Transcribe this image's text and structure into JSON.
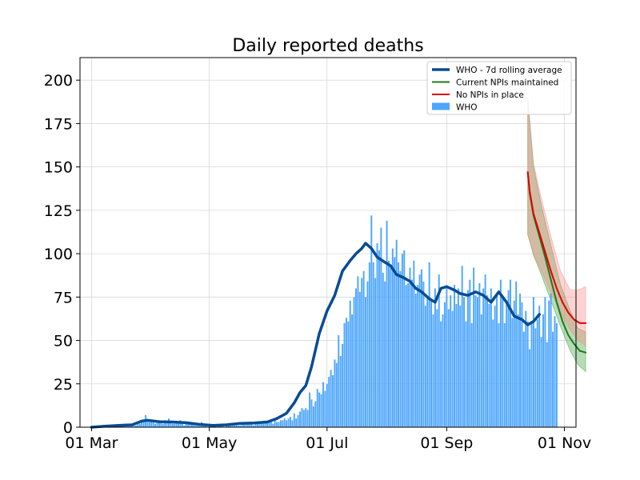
{
  "chart_data": {
    "type": "bar",
    "title": "Daily reported deaths",
    "xlabel": "",
    "ylabel": "",
    "grid": true,
    "legend_position": "top-right",
    "x_range": [
      "2020-02-24",
      "2020-11-07"
    ],
    "ylim": [
      0,
      213
    ],
    "x_ticks": [
      {
        "date": "2020-03-01",
        "label": "01 Mar"
      },
      {
        "date": "2020-05-01",
        "label": "01 May"
      },
      {
        "date": "2020-07-01",
        "label": "01 Jul"
      },
      {
        "date": "2020-09-01",
        "label": "01 Sep"
      },
      {
        "date": "2020-11-01",
        "label": "01 Nov"
      }
    ],
    "y_ticks": [
      0,
      25,
      50,
      75,
      100,
      125,
      150,
      175,
      200
    ],
    "start_date": "2020-03-01",
    "bars": {
      "name": "WHO",
      "color": "#4da6ff",
      "values": [
        0,
        0,
        0,
        1,
        1,
        0,
        1,
        0,
        1,
        1,
        1,
        1,
        0,
        0,
        1,
        1,
        1,
        2,
        1,
        1,
        1,
        1,
        2,
        1,
        2,
        2,
        3,
        4,
        7,
        4,
        3,
        4,
        3,
        2,
        3,
        4,
        3,
        2,
        4,
        3,
        5,
        3,
        2,
        2,
        3,
        2,
        4,
        3,
        1,
        2,
        3,
        2,
        2,
        2,
        1,
        2,
        2,
        3,
        1,
        1,
        0,
        1,
        1,
        0,
        1,
        0,
        1,
        1,
        1,
        0,
        1,
        2,
        1,
        1,
        1,
        2,
        1,
        1,
        2,
        2,
        2,
        2,
        2,
        2,
        1,
        2,
        3,
        2,
        3,
        2,
        3,
        3,
        3,
        3,
        2,
        4,
        3,
        3,
        4,
        4,
        5,
        4,
        5,
        6,
        4,
        8,
        5,
        7,
        9,
        11,
        10,
        11,
        10,
        20,
        16,
        12,
        15,
        22,
        20,
        19,
        26,
        21,
        25,
        29,
        33,
        30,
        39,
        37,
        53,
        41,
        48,
        60,
        63,
        61,
        73,
        65,
        75,
        80,
        87,
        78,
        86,
        90,
        75,
        84,
        95,
        122,
        95,
        86,
        106,
        102,
        115,
        89,
        84,
        119,
        96,
        93,
        103,
        98,
        108,
        95,
        90,
        100,
        102,
        82,
        83,
        92,
        85,
        96,
        77,
        82,
        88,
        91,
        84,
        70,
        75,
        95,
        74,
        65,
        80,
        68,
        88,
        61,
        65,
        72,
        80,
        68,
        76,
        67,
        82,
        71,
        80,
        70,
        93,
        75,
        61,
        79,
        85,
        60,
        92,
        76,
        75,
        83,
        65,
        80,
        88,
        76,
        71,
        80,
        62,
        70,
        77,
        60,
        85,
        75,
        60,
        72,
        79,
        85,
        63,
        73,
        84,
        65,
        77,
        72,
        55,
        67,
        61,
        45,
        60,
        75,
        57,
        62,
        70,
        52,
        65,
        75,
        49,
        73,
        77,
        55,
        64,
        60
      ],
      "note_values": "one bar per day starting at start_date"
    },
    "series": [
      {
        "name": "WHO - 7d rolling average",
        "color": "#084c94",
        "points": [
          [
            "2020-03-01",
            0
          ],
          [
            "2020-03-08",
            0.6
          ],
          [
            "2020-03-15",
            1
          ],
          [
            "2020-03-22",
            1.4
          ],
          [
            "2020-03-27",
            3.5
          ],
          [
            "2020-03-30",
            4
          ],
          [
            "2020-04-05",
            3.2
          ],
          [
            "2020-04-12",
            3
          ],
          [
            "2020-04-19",
            2.6
          ],
          [
            "2020-04-26",
            1.6
          ],
          [
            "2020-05-03",
            1
          ],
          [
            "2020-05-10",
            1.4
          ],
          [
            "2020-05-17",
            2.2
          ],
          [
            "2020-05-24",
            2.4
          ],
          [
            "2020-05-31",
            3
          ],
          [
            "2020-06-05",
            5
          ],
          [
            "2020-06-10",
            8
          ],
          [
            "2020-06-14",
            14
          ],
          [
            "2020-06-17",
            20
          ],
          [
            "2020-06-20",
            24
          ],
          [
            "2020-06-23",
            35
          ],
          [
            "2020-06-27",
            54
          ],
          [
            "2020-07-01",
            67
          ],
          [
            "2020-07-05",
            76
          ],
          [
            "2020-07-09",
            90
          ],
          [
            "2020-07-13",
            96
          ],
          [
            "2020-07-16",
            100
          ],
          [
            "2020-07-19",
            103
          ],
          [
            "2020-07-21",
            106
          ],
          [
            "2020-07-24",
            103
          ],
          [
            "2020-07-27",
            98
          ],
          [
            "2020-07-31",
            95
          ],
          [
            "2020-08-03",
            93
          ],
          [
            "2020-08-06",
            88
          ],
          [
            "2020-08-10",
            86
          ],
          [
            "2020-08-13",
            84
          ],
          [
            "2020-08-16",
            80
          ],
          [
            "2020-08-19",
            78
          ],
          [
            "2020-08-23",
            74
          ],
          [
            "2020-08-26",
            72
          ],
          [
            "2020-08-29",
            80
          ],
          [
            "2020-09-01",
            81
          ],
          [
            "2020-09-05",
            79
          ],
          [
            "2020-09-08",
            77
          ],
          [
            "2020-09-12",
            76
          ],
          [
            "2020-09-16",
            78
          ],
          [
            "2020-09-20",
            76
          ],
          [
            "2020-09-24",
            72
          ],
          [
            "2020-09-28",
            78
          ],
          [
            "2020-10-02",
            72
          ],
          [
            "2020-10-06",
            64
          ],
          [
            "2020-10-10",
            62
          ],
          [
            "2020-10-13",
            59
          ],
          [
            "2020-10-16",
            61
          ],
          [
            "2020-10-19",
            65
          ]
        ]
      },
      {
        "name": "Current NPIs maintained",
        "color": "#1a7a1a",
        "points": [
          [
            "2020-10-13",
            147
          ],
          [
            "2020-10-14",
            135
          ],
          [
            "2020-10-16",
            122
          ],
          [
            "2020-10-19",
            110
          ],
          [
            "2020-10-22",
            98
          ],
          [
            "2020-10-25",
            85
          ],
          [
            "2020-10-28",
            72
          ],
          [
            "2020-10-31",
            61
          ],
          [
            "2020-11-03",
            53
          ],
          [
            "2020-11-06",
            48
          ],
          [
            "2020-11-09",
            44
          ],
          [
            "2020-11-12",
            43
          ]
        ],
        "band": {
          "color": "#2e9a2e",
          "upper": [
            [
              "2020-10-13",
              190
            ],
            [
              "2020-10-16",
              150
            ],
            [
              "2020-10-20",
              128
            ],
            [
              "2020-10-25",
              105
            ],
            [
              "2020-10-30",
              82
            ],
            [
              "2020-11-04",
              67
            ],
            [
              "2020-11-08",
              57
            ],
            [
              "2020-11-12",
              55
            ]
          ],
          "lower": [
            [
              "2020-10-13",
              111
            ],
            [
              "2020-10-16",
              99
            ],
            [
              "2020-10-20",
              88
            ],
            [
              "2020-10-25",
              73
            ],
            [
              "2020-10-30",
              58
            ],
            [
              "2020-11-04",
              44
            ],
            [
              "2020-11-08",
              36
            ],
            [
              "2020-11-12",
              32
            ]
          ]
        }
      },
      {
        "name": "No NPIs in place",
        "color": "#e00000",
        "points": [
          [
            "2020-10-13",
            147
          ],
          [
            "2020-10-14",
            136
          ],
          [
            "2020-10-16",
            123
          ],
          [
            "2020-10-19",
            112
          ],
          [
            "2020-10-22",
            101
          ],
          [
            "2020-10-25",
            90
          ],
          [
            "2020-10-28",
            80
          ],
          [
            "2020-10-31",
            72
          ],
          [
            "2020-11-03",
            66
          ],
          [
            "2020-11-06",
            62
          ],
          [
            "2020-11-09",
            60
          ],
          [
            "2020-11-12",
            60
          ]
        ],
        "band": {
          "color": "#ff8080",
          "upper": [
            [
              "2020-10-13",
              190
            ],
            [
              "2020-10-16",
              152
            ],
            [
              "2020-10-20",
              132
            ],
            [
              "2020-10-25",
              110
            ],
            [
              "2020-10-30",
              90
            ],
            [
              "2020-11-04",
              79
            ],
            [
              "2020-11-08",
              79
            ],
            [
              "2020-11-12",
              81
            ]
          ],
          "lower": [
            [
              "2020-10-13",
              111
            ],
            [
              "2020-10-16",
              100
            ],
            [
              "2020-10-20",
              90
            ],
            [
              "2020-10-25",
              78
            ],
            [
              "2020-10-30",
              66
            ],
            [
              "2020-11-04",
              56
            ],
            [
              "2020-11-08",
              50
            ],
            [
              "2020-11-12",
              47
            ]
          ]
        }
      }
    ],
    "legend": [
      {
        "label": "WHO - 7d rolling average",
        "kind": "line-thick",
        "color": "#084c94"
      },
      {
        "label": "Current NPIs maintained",
        "kind": "line",
        "color": "#1a7a1a"
      },
      {
        "label": "No NPIs in place",
        "kind": "line",
        "color": "#e00000"
      },
      {
        "label": "WHO",
        "kind": "patch",
        "color": "#4da6ff"
      }
    ]
  }
}
